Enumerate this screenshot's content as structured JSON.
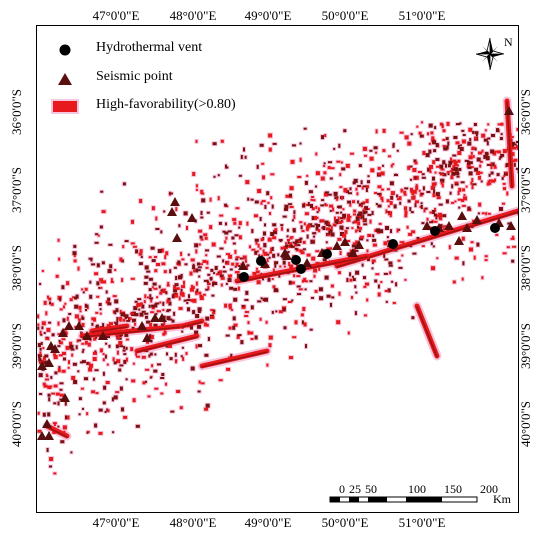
{
  "longitude_labels": [
    "47°0'0\"E",
    "48°0'0\"E",
    "49°0'0\"E",
    "50°0'0\"E",
    "51°0'0\"E"
  ],
  "latitude_labels": [
    "36°0'0\"S",
    "37°0'0\"S",
    "38°0'0\"S",
    "39°0'0\"S",
    "40°0'0\"S"
  ],
  "legend": {
    "vent": "Hydrothermal vent",
    "seismic": "Seismic point",
    "favor": "High-favorability(>0.80)"
  },
  "north_label": "N",
  "scale": {
    "ticks": [
      "0",
      "25",
      "50",
      "100",
      "150",
      "200"
    ],
    "unit": "Km"
  },
  "colors": {
    "favor_fill": "#e8191c",
    "favor_dark": "#7a1010",
    "halo": "#f6c6de",
    "marker": "#5a0f0f",
    "vent": "#000000"
  }
}
